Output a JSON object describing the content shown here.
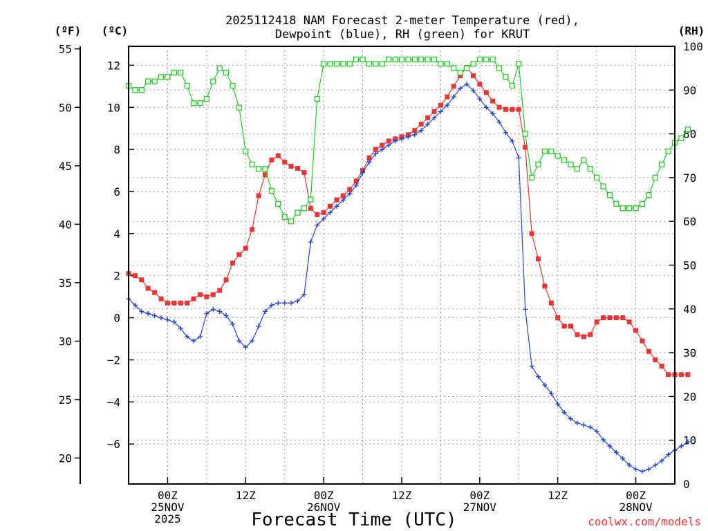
{
  "chart_data": {
    "type": "line",
    "title_line1": "2025112418 NAM Forecast 2-meter Temperature (red),",
    "title_line2": "Dewpoint (blue), RH (green) for KRUT",
    "xlabel": "Forecast Time (UTC)",
    "credit": "coolwx.com/models",
    "unit_f": "(ºF)",
    "unit_c": "(ºC)",
    "unit_rh": "(RH)",
    "x_start": "2025-11-24 18Z",
    "x_step_hours": 1,
    "x_range_hours": [
      0,
      84
    ],
    "y_celsius_ticks": [
      -6,
      -4,
      -2,
      0,
      2,
      4,
      6,
      8,
      10,
      12
    ],
    "y_fahrenheit_ticks": [
      20,
      25,
      30,
      35,
      40,
      45,
      50,
      55
    ],
    "y_rh_ticks": [
      0,
      10,
      20,
      30,
      40,
      50,
      60,
      70,
      80,
      90,
      100
    ],
    "ylim_celsius": [
      -7.9,
      12.9
    ],
    "ylim_rh": [
      0,
      100
    ],
    "x_tick_labels": [
      {
        "hour": 6,
        "lines": [
          "00Z",
          "25NOV",
          "2025"
        ]
      },
      {
        "hour": 18,
        "lines": [
          "12Z"
        ]
      },
      {
        "hour": 30,
        "lines": [
          "00Z",
          "26NOV"
        ]
      },
      {
        "hour": 42,
        "lines": [
          "12Z"
        ]
      },
      {
        "hour": 54,
        "lines": [
          "00Z",
          "27NOV"
        ]
      },
      {
        "hour": 66,
        "lines": [
          "12Z"
        ]
      },
      {
        "hour": 78,
        "lines": [
          "00Z",
          "28NOV"
        ]
      }
    ],
    "series": [
      {
        "name": "Temperature",
        "color": "#ee3333",
        "marker": "filled-square",
        "axis": "celsius",
        "values": [
          2.1,
          2.0,
          1.8,
          1.4,
          1.2,
          0.9,
          0.7,
          0.7,
          0.7,
          0.7,
          0.9,
          1.1,
          1.0,
          1.1,
          1.3,
          1.8,
          2.6,
          3.0,
          3.3,
          4.2,
          5.8,
          6.8,
          7.5,
          7.7,
          7.4,
          7.2,
          7.1,
          6.9,
          5.2,
          4.9,
          5.0,
          5.3,
          5.6,
          5.8,
          6.1,
          6.5,
          7.0,
          7.6,
          8.0,
          8.2,
          8.4,
          8.5,
          8.6,
          8.7,
          8.9,
          9.2,
          9.5,
          9.8,
          10.1,
          10.5,
          11.0,
          11.5,
          11.9,
          11.5,
          11.1,
          10.7,
          10.3,
          10.0,
          9.9,
          9.9,
          9.9,
          8.1,
          4.0,
          2.8,
          1.5,
          0.7,
          0.0,
          -0.4,
          -0.4,
          -0.8,
          -0.9,
          -0.8,
          -0.2,
          0.0,
          0.0,
          0.0,
          0.0,
          -0.2,
          -0.6,
          -1.1,
          -1.6,
          -2.0,
          -2.3,
          -2.7,
          -2.7,
          -2.7,
          -2.7
        ]
      },
      {
        "name": "Dewpoint",
        "color": "#2244dd",
        "marker": "plus",
        "axis": "celsius",
        "values": [
          0.9,
          0.6,
          0.3,
          0.2,
          0.1,
          0.0,
          -0.1,
          -0.2,
          -0.5,
          -0.9,
          -1.1,
          -0.9,
          0.2,
          0.4,
          0.3,
          0.1,
          -0.3,
          -1.1,
          -1.4,
          -1.1,
          -0.4,
          0.3,
          0.6,
          0.7,
          0.7,
          0.7,
          0.8,
          1.1,
          3.6,
          4.4,
          4.7,
          5.0,
          5.3,
          5.6,
          5.9,
          6.3,
          6.9,
          7.4,
          7.8,
          8.0,
          8.2,
          8.4,
          8.5,
          8.6,
          8.7,
          8.9,
          9.2,
          9.5,
          9.8,
          10.1,
          10.5,
          10.9,
          11.1,
          10.8,
          10.4,
          10.0,
          9.7,
          9.3,
          8.8,
          8.4,
          7.6,
          0.4,
          -2.3,
          -2.8,
          -3.2,
          -3.6,
          -4.1,
          -4.5,
          -4.8,
          -5.0,
          -5.1,
          -5.2,
          -5.4,
          -5.8,
          -6.1,
          -6.4,
          -6.7,
          -7.0,
          -7.2,
          -7.3,
          -7.2,
          -7.0,
          -6.8,
          -6.5,
          -6.3,
          -6.1,
          -5.9
        ]
      },
      {
        "name": "RH",
        "color": "#22cc22",
        "marker": "open-square",
        "axis": "rh",
        "values": [
          91,
          90,
          90,
          92,
          92,
          93,
          93,
          94,
          94,
          91,
          87,
          87,
          88,
          92,
          95,
          94,
          91,
          86,
          76,
          73,
          72,
          72,
          67,
          64,
          61,
          60,
          62,
          63,
          65,
          88,
          96,
          96,
          96,
          96,
          96,
          97,
          97,
          96,
          96,
          96,
          97,
          97,
          97,
          97,
          97,
          97,
          97,
          97,
          96,
          96,
          95,
          94,
          95,
          96,
          97,
          97,
          97,
          95,
          93,
          91,
          96,
          80,
          70,
          73,
          76,
          76,
          75,
          74,
          73,
          72,
          74,
          72,
          70,
          68,
          66,
          64,
          63,
          63,
          63,
          64,
          66,
          70,
          73,
          76,
          78,
          79,
          81
        ]
      }
    ]
  }
}
